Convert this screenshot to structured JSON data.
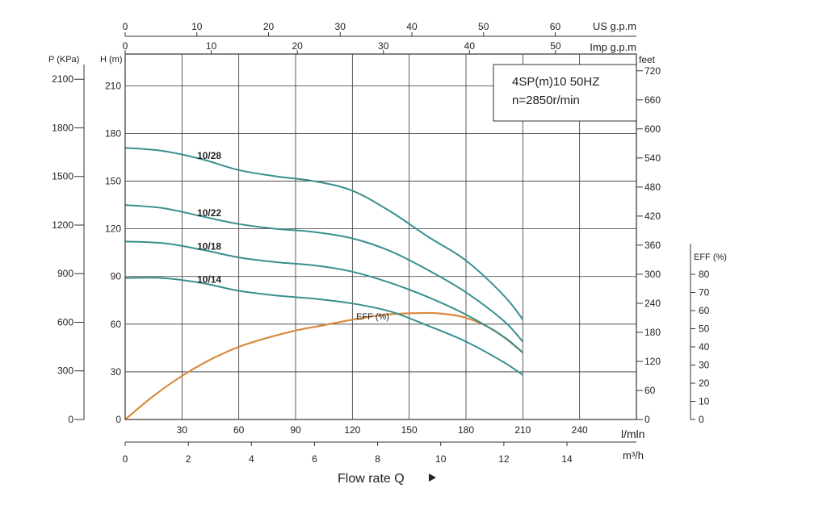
{
  "chart_data": {
    "type": "line",
    "model_line": "4SP(m)10  50HZ",
    "speed_line": "n=2850r/min",
    "xlabel": "Flow rate Q",
    "x_axis_units": {
      "lmin": "l/mln",
      "m3h": "m³/h",
      "us": "US g.p.m",
      "imp": "Imp g.p.m"
    },
    "y_axis_units": {
      "kpa": "P (KPa)",
      "h": "H (m)",
      "feet": "feet",
      "eff": "EFF (%)"
    },
    "x_ticks_lmin": [
      "30",
      "60",
      "90",
      "120",
      "150",
      "180",
      "210",
      "240"
    ],
    "x_ticks_lmin_values": [
      30,
      60,
      90,
      120,
      150,
      180,
      210,
      240
    ],
    "x_ticks_m3h": [
      "0",
      "2",
      "4",
      "6",
      "8",
      "10",
      "12",
      "14"
    ],
    "x_ticks_m3h_values": [
      0,
      2,
      4,
      6,
      8,
      10,
      12,
      14
    ],
    "x_ticks_us": [
      "0",
      "10",
      "20",
      "30",
      "40",
      "50",
      "60"
    ],
    "x_ticks_us_values": [
      0,
      10,
      20,
      30,
      40,
      50,
      60
    ],
    "x_ticks_imp": [
      "0",
      "10",
      "20",
      "30",
      "40",
      "50"
    ],
    "x_ticks_imp_values": [
      0,
      10,
      20,
      30,
      40,
      50
    ],
    "y_ticks_h": [
      "0",
      "30",
      "60",
      "90",
      "120",
      "150",
      "180",
      "210"
    ],
    "y_ticks_h_values": [
      0,
      30,
      60,
      90,
      120,
      150,
      180,
      210
    ],
    "y_ticks_kpa": [
      "0",
      "300",
      "600",
      "900",
      "1200",
      "1500",
      "1800",
      "2100"
    ],
    "y_ticks_kpa_values": [
      0,
      300,
      600,
      900,
      1200,
      1500,
      1800,
      2100
    ],
    "y_ticks_feet": [
      "0",
      "60",
      "120",
      "180",
      "240",
      "300",
      "360",
      "420",
      "480",
      "540",
      "600",
      "660",
      "720"
    ],
    "y_ticks_feet_values": [
      0,
      60,
      120,
      180,
      240,
      300,
      360,
      420,
      480,
      540,
      600,
      660,
      720
    ],
    "y_ticks_eff": [
      "0",
      "10",
      "20",
      "30",
      "40",
      "50",
      "60",
      "70",
      "80"
    ],
    "y_ticks_eff_values": [
      0,
      10,
      20,
      30,
      40,
      50,
      60,
      70,
      80
    ],
    "x_range_lmin": [
      0,
      270
    ],
    "y_range_h": [
      0,
      230
    ],
    "eff_range": [
      0,
      90
    ],
    "grid": true,
    "series_color": "#3a8f8f",
    "eff_color": "#d98a3c",
    "series": [
      {
        "name": "10/28",
        "x": [
          0,
          20,
          40,
          60,
          80,
          100,
          120,
          140,
          160,
          180,
          200,
          210
        ],
        "values": [
          171,
          169,
          164,
          157,
          153,
          150,
          144,
          131,
          115,
          100,
          78,
          63
        ]
      },
      {
        "name": "10/22",
        "x": [
          0,
          20,
          40,
          60,
          80,
          100,
          120,
          140,
          160,
          180,
          200,
          210
        ],
        "values": [
          135,
          133,
          128,
          123,
          120,
          118,
          114,
          106,
          94,
          80,
          62,
          49
        ]
      },
      {
        "name": "10/18",
        "x": [
          0,
          20,
          40,
          60,
          80,
          100,
          120,
          140,
          160,
          180,
          200,
          210
        ],
        "values": [
          112,
          111,
          107,
          102,
          99,
          97,
          93,
          86,
          77,
          66,
          52,
          42
        ]
      },
      {
        "name": "10/14",
        "x": [
          0,
          20,
          40,
          60,
          80,
          100,
          120,
          140,
          160,
          180,
          200,
          210
        ],
        "values": [
          89,
          89,
          86,
          81,
          78,
          76,
          73,
          68,
          59,
          49,
          36,
          28
        ]
      }
    ],
    "efficiency": {
      "name": "EFF (%)",
      "x": [
        0,
        15,
        30,
        45,
        60,
        75,
        90,
        105,
        120,
        135,
        150,
        165,
        180,
        195,
        210
      ],
      "values": [
        0,
        13,
        24,
        33,
        40,
        45,
        49,
        52,
        55,
        57.5,
        58.5,
        58.5,
        56,
        49,
        37
      ]
    }
  }
}
